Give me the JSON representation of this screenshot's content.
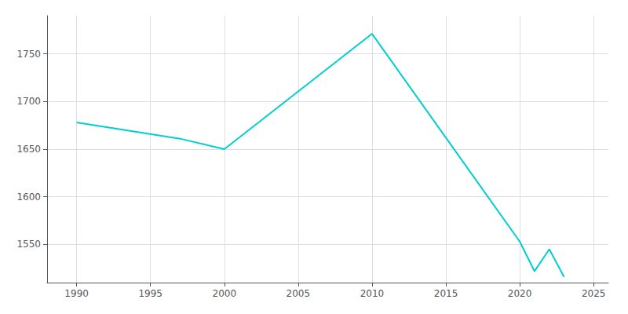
{
  "chart_data": {
    "type": "line",
    "x": [
      1990,
      1997,
      2000,
      2010,
      2020,
      2021,
      2022,
      2023
    ],
    "values": [
      1678,
      1661,
      1650,
      1771,
      1553,
      1522,
      1545,
      1516
    ],
    "color": "#00CED1",
    "xlim": [
      1988,
      2026
    ],
    "xticks": [
      1990,
      1995,
      2000,
      2005,
      2010,
      2015,
      2020,
      2025
    ],
    "ylim": [
      1510,
      1790
    ],
    "yticks": [
      1550,
      1600,
      1650,
      1700,
      1750
    ],
    "grid": true
  }
}
